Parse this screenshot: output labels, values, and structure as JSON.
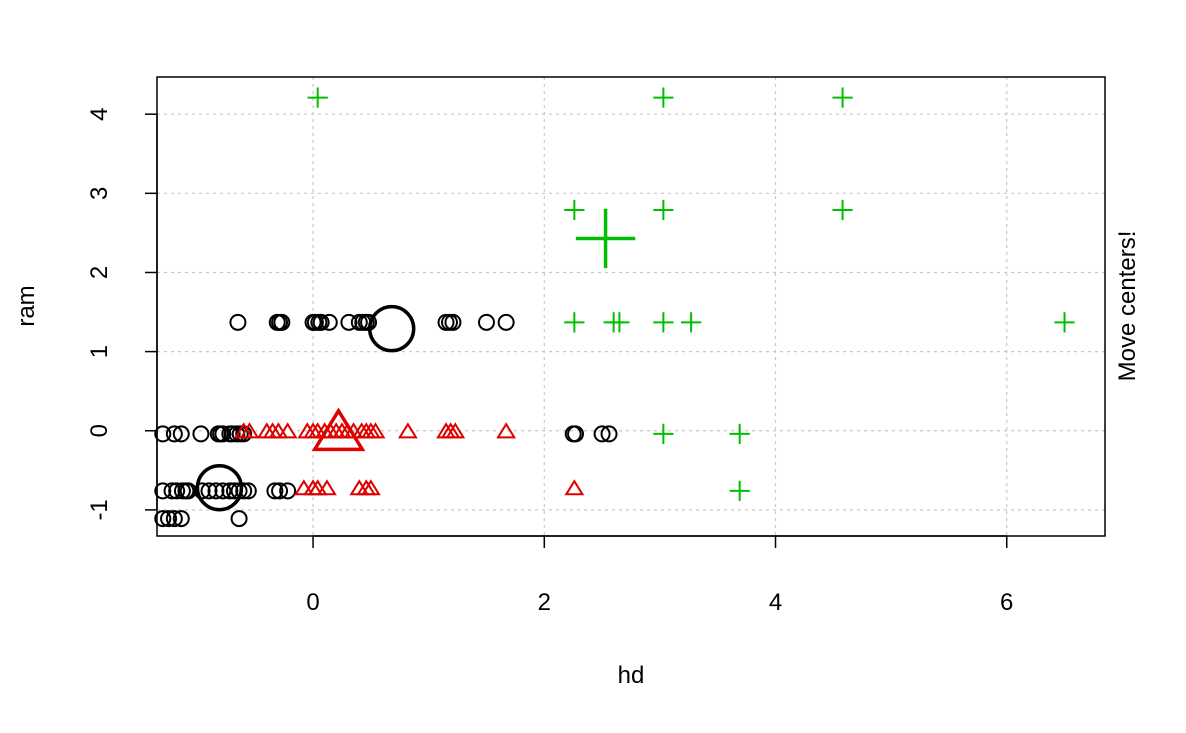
{
  "chart_data": {
    "type": "scatter",
    "xlabel": "hd",
    "ylabel": "ram",
    "side_text": "Move centers!",
    "xlim": [
      -1.35,
      6.85
    ],
    "ylim": [
      -1.33,
      4.47
    ],
    "xticks": [
      0,
      2,
      4,
      6
    ],
    "yticks": [
      -1,
      0,
      1,
      2,
      3,
      4
    ],
    "grid": true,
    "series": [
      {
        "marker": "circle",
        "color": "#000000",
        "points": [
          [
            -0.65,
            1.37
          ],
          [
            -0.31,
            1.37
          ],
          [
            -0.29,
            1.37
          ],
          [
            -0.27,
            1.37
          ],
          [
            0.0,
            1.37
          ],
          [
            0.02,
            1.37
          ],
          [
            0.05,
            1.37
          ],
          [
            0.07,
            1.37
          ],
          [
            0.14,
            1.37
          ],
          [
            0.31,
            1.37
          ],
          [
            0.4,
            1.37
          ],
          [
            0.43,
            1.37
          ],
          [
            0.46,
            1.37
          ],
          [
            0.48,
            1.37
          ],
          [
            1.15,
            1.37
          ],
          [
            1.18,
            1.37
          ],
          [
            1.21,
            1.37
          ],
          [
            1.5,
            1.37
          ],
          [
            1.67,
            1.37
          ],
          [
            -1.3,
            -0.04
          ],
          [
            -1.2,
            -0.04
          ],
          [
            -1.14,
            -0.04
          ],
          [
            -0.97,
            -0.04
          ],
          [
            -0.82,
            -0.04
          ],
          [
            -0.8,
            -0.04
          ],
          [
            -0.78,
            -0.04
          ],
          [
            -0.72,
            -0.04
          ],
          [
            -0.7,
            -0.04
          ],
          [
            -0.66,
            -0.04
          ],
          [
            -0.63,
            -0.04
          ],
          [
            -0.6,
            -0.04
          ],
          [
            2.25,
            -0.04
          ],
          [
            2.27,
            -0.04
          ],
          [
            2.5,
            -0.04
          ],
          [
            2.56,
            -0.04
          ],
          [
            -1.3,
            -0.76
          ],
          [
            -1.22,
            -0.76
          ],
          [
            -1.18,
            -0.76
          ],
          [
            -1.13,
            -0.76
          ],
          [
            -1.1,
            -0.76
          ],
          [
            -1.08,
            -0.76
          ],
          [
            -0.96,
            -0.76
          ],
          [
            -0.9,
            -0.76
          ],
          [
            -0.84,
            -0.76
          ],
          [
            -0.78,
            -0.76
          ],
          [
            -0.72,
            -0.76
          ],
          [
            -0.68,
            -0.76
          ],
          [
            -0.64,
            -0.76
          ],
          [
            -0.6,
            -0.76
          ],
          [
            -0.56,
            -0.76
          ],
          [
            -0.33,
            -0.76
          ],
          [
            -0.29,
            -0.76
          ],
          [
            -0.22,
            -0.76
          ],
          [
            -1.3,
            -1.11
          ],
          [
            -1.25,
            -1.11
          ],
          [
            -1.2,
            -1.11
          ],
          [
            -1.14,
            -1.11
          ],
          [
            -0.64,
            -1.11
          ]
        ]
      },
      {
        "marker": "triangle",
        "color": "#df0000",
        "points": [
          [
            -0.6,
            -0.02
          ],
          [
            -0.55,
            -0.02
          ],
          [
            -0.4,
            -0.02
          ],
          [
            -0.35,
            -0.02
          ],
          [
            -0.3,
            -0.02
          ],
          [
            -0.22,
            -0.02
          ],
          [
            -0.05,
            -0.02
          ],
          [
            0.0,
            -0.02
          ],
          [
            0.04,
            -0.02
          ],
          [
            0.1,
            -0.02
          ],
          [
            0.15,
            -0.02
          ],
          [
            0.2,
            -0.02
          ],
          [
            0.25,
            -0.02
          ],
          [
            0.3,
            -0.02
          ],
          [
            0.35,
            -0.02
          ],
          [
            0.42,
            -0.02
          ],
          [
            0.46,
            -0.02
          ],
          [
            0.5,
            -0.02
          ],
          [
            0.54,
            -0.02
          ],
          [
            0.82,
            -0.02
          ],
          [
            1.15,
            -0.02
          ],
          [
            1.19,
            -0.02
          ],
          [
            1.23,
            -0.02
          ],
          [
            1.67,
            -0.02
          ],
          [
            -0.08,
            -0.74
          ],
          [
            0.0,
            -0.74
          ],
          [
            0.04,
            -0.74
          ],
          [
            0.12,
            -0.74
          ],
          [
            0.4,
            -0.74
          ],
          [
            0.46,
            -0.74
          ],
          [
            0.5,
            -0.74
          ],
          [
            2.26,
            -0.74
          ]
        ]
      },
      {
        "marker": "plus",
        "color": "#00bf00",
        "points": [
          [
            0.04,
            4.21
          ],
          [
            3.03,
            4.21
          ],
          [
            4.58,
            4.21
          ],
          [
            2.26,
            2.79
          ],
          [
            3.03,
            2.79
          ],
          [
            4.58,
            2.79
          ],
          [
            2.26,
            1.37
          ],
          [
            2.6,
            1.37
          ],
          [
            2.65,
            1.37
          ],
          [
            3.03,
            1.37
          ],
          [
            3.27,
            1.37
          ],
          [
            6.5,
            1.37
          ],
          [
            3.03,
            -0.04
          ],
          [
            3.69,
            -0.04
          ],
          [
            3.69,
            -0.76
          ]
        ]
      }
    ],
    "centers": [
      {
        "marker": "circle",
        "color": "#000000",
        "x": -0.81,
        "y": -0.72
      },
      {
        "marker": "circle",
        "color": "#000000",
        "x": 0.68,
        "y": 1.29
      },
      {
        "marker": "triangle",
        "color": "#df0000",
        "x": 0.22,
        "y": -0.05
      },
      {
        "marker": "plus",
        "color": "#00bf00",
        "x": 2.53,
        "y": 2.43
      }
    ]
  }
}
